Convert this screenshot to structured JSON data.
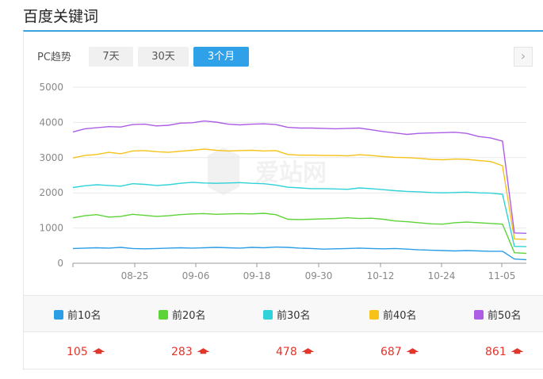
{
  "title": "百度关键词",
  "controls": {
    "label": "PC趋势",
    "buttons": [
      "7天",
      "30天",
      "3个月"
    ],
    "active": "3个月",
    "next_icon": "chevron-right-icon"
  },
  "watermark": "爱站网",
  "chart_data": {
    "type": "line",
    "ylim": [
      0,
      5000
    ],
    "y_ticks": [
      "0",
      "1000",
      "2000",
      "3000",
      "4000",
      "5000"
    ],
    "x_ticks": [
      "08-25",
      "09-06",
      "09-18",
      "09-30",
      "10-12",
      "10-24",
      "11-05"
    ],
    "grid": true,
    "legend_position": "bottom",
    "series": [
      {
        "name": "前10名",
        "color": "#2c9ee6",
        "value": "105",
        "values": [
          420,
          430,
          440,
          430,
          450,
          420,
          410,
          420,
          430,
          440,
          430,
          440,
          450,
          440,
          430,
          450,
          440,
          460,
          450,
          430,
          420,
          400,
          410,
          420,
          430,
          420,
          410,
          420,
          400,
          380,
          370,
          360,
          350,
          360,
          350,
          340,
          340,
          120,
          100
        ]
      },
      {
        "name": "前20名",
        "color": "#5cd337",
        "value": "283",
        "values": [
          1290,
          1350,
          1380,
          1310,
          1330,
          1390,
          1360,
          1330,
          1350,
          1380,
          1400,
          1410,
          1390,
          1400,
          1410,
          1400,
          1420,
          1380,
          1250,
          1240,
          1250,
          1260,
          1270,
          1290,
          1270,
          1280,
          1250,
          1200,
          1180,
          1150,
          1120,
          1110,
          1150,
          1170,
          1150,
          1130,
          1110,
          300,
          280
        ]
      },
      {
        "name": "前30名",
        "color": "#2ed2d8",
        "value": "478",
        "values": [
          2150,
          2200,
          2230,
          2210,
          2190,
          2260,
          2240,
          2210,
          2230,
          2270,
          2300,
          2280,
          2270,
          2280,
          2290,
          2270,
          2260,
          2220,
          2160,
          2140,
          2120,
          2120,
          2110,
          2100,
          2140,
          2120,
          2090,
          2060,
          2040,
          2030,
          2010,
          2000,
          2010,
          2020,
          2000,
          1990,
          1960,
          480,
          470
        ]
      },
      {
        "name": "前40名",
        "color": "#f7c21a",
        "value": "687",
        "values": [
          2990,
          3060,
          3090,
          3150,
          3110,
          3190,
          3200,
          3170,
          3150,
          3180,
          3210,
          3240,
          3210,
          3190,
          3200,
          3210,
          3190,
          3200,
          3090,
          3070,
          3070,
          3060,
          3060,
          3050,
          3080,
          3060,
          3030,
          3010,
          3000,
          2980,
          2950,
          2940,
          2960,
          2950,
          2920,
          2890,
          2770,
          690,
          680
        ]
      },
      {
        "name": "前50名",
        "color": "#ad5ee4",
        "value": "861",
        "values": [
          3730,
          3820,
          3850,
          3880,
          3870,
          3940,
          3950,
          3900,
          3920,
          3980,
          3990,
          4040,
          4010,
          3950,
          3930,
          3950,
          3960,
          3940,
          3860,
          3840,
          3840,
          3830,
          3820,
          3830,
          3840,
          3790,
          3740,
          3700,
          3660,
          3690,
          3700,
          3710,
          3720,
          3690,
          3600,
          3560,
          3470,
          860,
          850
        ]
      }
    ]
  }
}
